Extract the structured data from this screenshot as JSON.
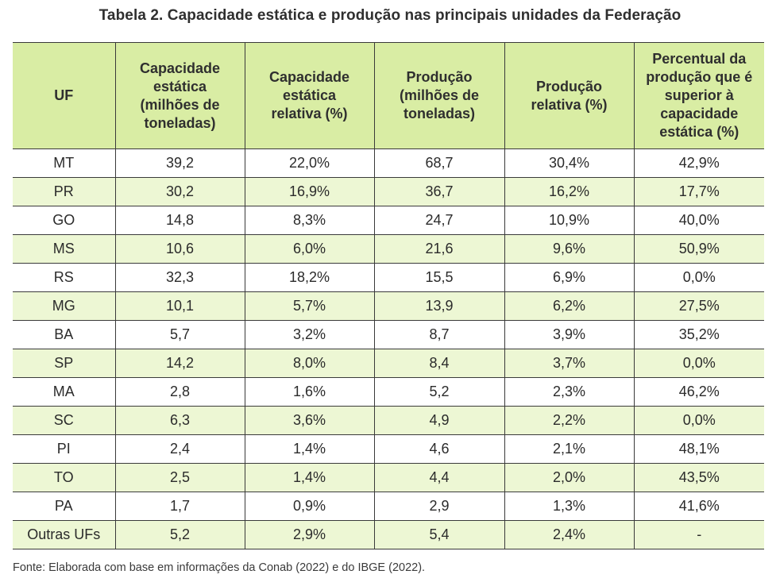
{
  "title": "Tabela 2. Capacidade estática e produção nas principais unidades da Federação",
  "columns": [
    "UF",
    "Capacidade estática (milhões de toneladas)",
    "Capacidade estática relativa (%)",
    "Produção (milhões de toneladas)",
    "Produção relativa (%)",
    "Percentual da produção que é superior à capacidade estática (%)"
  ],
  "rows": [
    [
      "MT",
      "39,2",
      "22,0%",
      "68,7",
      "30,4%",
      "42,9%"
    ],
    [
      "PR",
      "30,2",
      "16,9%",
      "36,7",
      "16,2%",
      "17,7%"
    ],
    [
      "GO",
      "14,8",
      "8,3%",
      "24,7",
      "10,9%",
      "40,0%"
    ],
    [
      "MS",
      "10,6",
      "6,0%",
      "21,6",
      "9,6%",
      "50,9%"
    ],
    [
      "RS",
      "32,3",
      "18,2%",
      "15,5",
      "6,9%",
      "0,0%"
    ],
    [
      "MG",
      "10,1",
      "5,7%",
      "13,9",
      "6,2%",
      "27,5%"
    ],
    [
      "BA",
      "5,7",
      "3,2%",
      "8,7",
      "3,9%",
      "35,2%"
    ],
    [
      "SP",
      "14,2",
      "8,0%",
      "8,4",
      "3,7%",
      "0,0%"
    ],
    [
      "MA",
      "2,8",
      "1,6%",
      "5,2",
      "2,3%",
      "46,2%"
    ],
    [
      "SC",
      "6,3",
      "3,6%",
      "4,9",
      "2,2%",
      "0,0%"
    ],
    [
      "PI",
      "2,4",
      "1,4%",
      "4,6",
      "2,1%",
      "48,1%"
    ],
    [
      "TO",
      "2,5",
      "1,4%",
      "4,4",
      "2,0%",
      "43,5%"
    ],
    [
      "PA",
      "1,7",
      "0,9%",
      "2,9",
      "1,3%",
      "41,6%"
    ],
    [
      "Outras UFs",
      "5,2",
      "2,9%",
      "5,4",
      "2,4%",
      "-"
    ]
  ],
  "source": "Fonte: Elaborada com base em informações da Conab (2022) e do IBGE (2022)."
}
